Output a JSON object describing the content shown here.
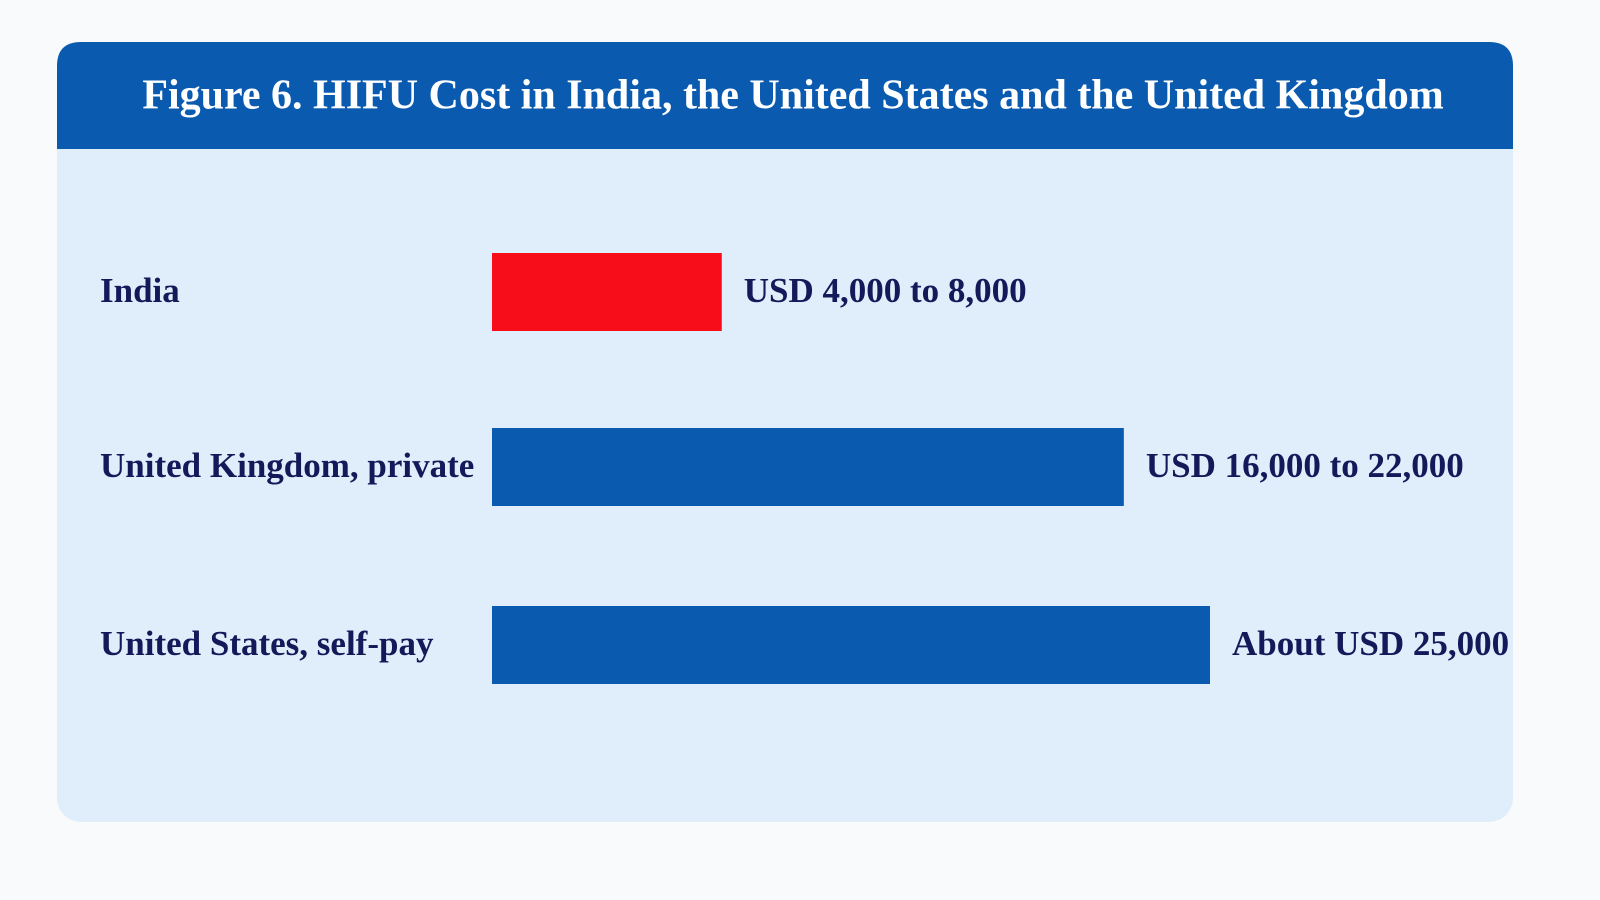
{
  "chart_data": {
    "type": "bar",
    "orientation": "horizontal",
    "title": "Figure 6. HIFU Cost in India, the United States and the United Kingdom",
    "categories": [
      "India",
      "United Kingdom, private",
      "United States, self-pay"
    ],
    "values": [
      8000,
      22000,
      25000
    ],
    "value_labels": [
      "USD 4,000 to 8,000",
      "USD 16,000 to 22,000",
      "About USD 25,000"
    ],
    "colors": [
      "#f70d1a",
      "#0a5bb0",
      "#0a5bb0"
    ],
    "grid": false
  }
}
